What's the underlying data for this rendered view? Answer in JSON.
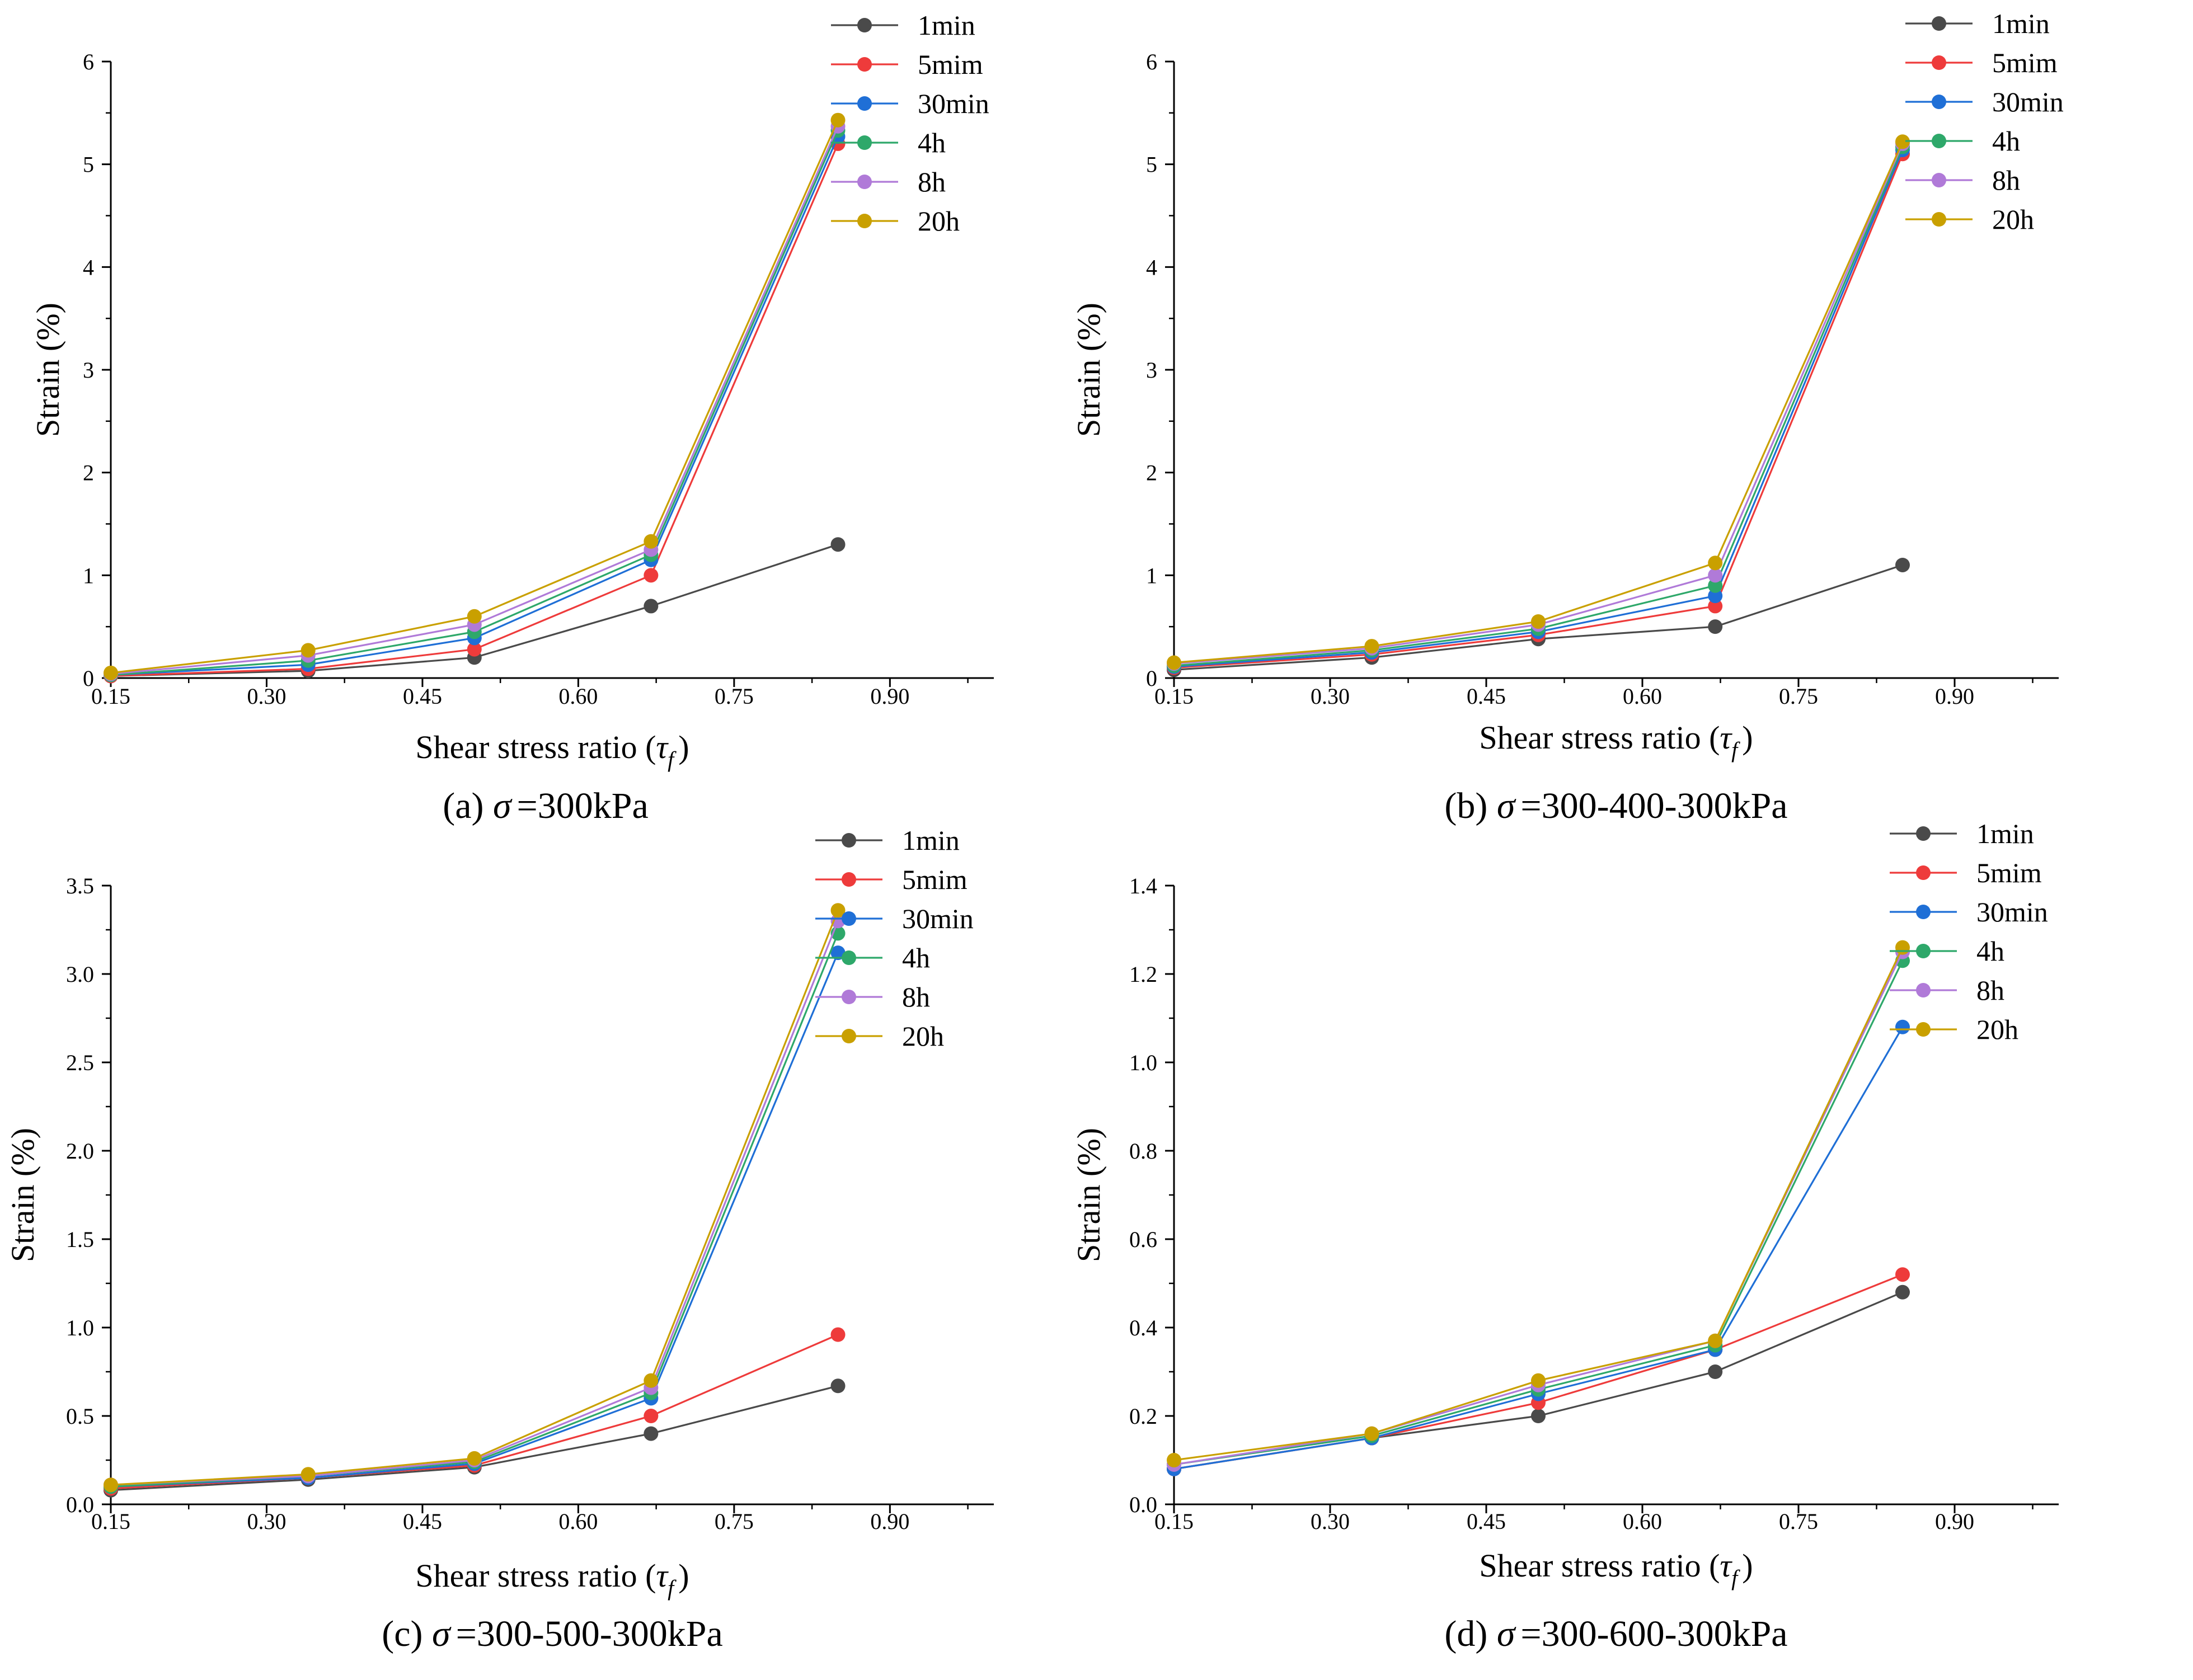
{
  "figure": {
    "series_styles": [
      {
        "name": "1min",
        "color": "#4a4a4a"
      },
      {
        "name": "5mim",
        "color": "#ee3b3b"
      },
      {
        "name": "30min",
        "color": "#1f6fd6"
      },
      {
        "name": "4h",
        "color": "#2ea86a"
      },
      {
        "name": "8h",
        "color": "#b07ad8"
      },
      {
        "name": "20h",
        "color": "#c9a000"
      }
    ]
  },
  "chart_data": [
    {
      "type": "line",
      "caption_prefix": "(a)",
      "caption_symbol": "σ",
      "caption_value": "=300kPa",
      "xlabel": "Shear stress ratio (",
      "xlabel_symbol": "τ",
      "xlabel_sub": "f",
      "xlabel_end": ")",
      "ylabel": "Strain (%)",
      "xlim": [
        0.15,
        1.0
      ],
      "ylim": [
        0,
        6
      ],
      "xticks": [
        0.15,
        0.3,
        0.45,
        0.6,
        0.75,
        0.9
      ],
      "xtick_labels": [
        "0.15",
        "0.30",
        "0.45",
        "0.60",
        "0.75",
        "0.90"
      ],
      "yticks": [
        0,
        1,
        2,
        3,
        4,
        5,
        6
      ],
      "ytick_labels": [
        "0",
        "1",
        "2",
        "3",
        "4",
        "5",
        "6"
      ],
      "x": [
        0.15,
        0.34,
        0.5,
        0.67,
        0.85
      ],
      "legend_position": "top-right",
      "series": [
        {
          "name": "1min",
          "values": [
            0.02,
            0.07,
            0.2,
            0.7,
            1.3
          ]
        },
        {
          "name": "5mim",
          "values": [
            0.02,
            0.09,
            0.28,
            1.0,
            5.2
          ]
        },
        {
          "name": "30min",
          "values": [
            0.03,
            0.13,
            0.39,
            1.15,
            5.27
          ]
        },
        {
          "name": "4h",
          "values": [
            0.03,
            0.17,
            0.45,
            1.2,
            5.33
          ]
        },
        {
          "name": "8h",
          "values": [
            0.04,
            0.22,
            0.52,
            1.25,
            5.37
          ]
        },
        {
          "name": "20h",
          "values": [
            0.05,
            0.27,
            0.6,
            1.33,
            5.43
          ]
        }
      ]
    },
    {
      "type": "line",
      "caption_prefix": "(b)",
      "caption_symbol": "σ",
      "caption_value": "=300-400-300kPa",
      "xlabel": "Shear stress ratio (",
      "xlabel_symbol": "τ",
      "xlabel_sub": "f",
      "xlabel_end": ")",
      "ylabel": "Strain (%)",
      "xlim": [
        0.15,
        1.0
      ],
      "ylim": [
        0,
        6
      ],
      "xticks": [
        0.15,
        0.3,
        0.45,
        0.6,
        0.75,
        0.9
      ],
      "xtick_labels": [
        "0.15",
        "0.30",
        "0.45",
        "0.60",
        "0.75",
        "0.90"
      ],
      "yticks": [
        0,
        1,
        2,
        3,
        4,
        5,
        6
      ],
      "ytick_labels": [
        "0",
        "1",
        "2",
        "3",
        "4",
        "5",
        "6"
      ],
      "x": [
        0.15,
        0.34,
        0.5,
        0.67,
        0.85
      ],
      "legend_position": "top-right",
      "series": [
        {
          "name": "1min",
          "values": [
            0.08,
            0.2,
            0.38,
            0.5,
            1.1
          ]
        },
        {
          "name": "5mim",
          "values": [
            0.1,
            0.23,
            0.42,
            0.7,
            5.1
          ]
        },
        {
          "name": "30min",
          "values": [
            0.11,
            0.25,
            0.45,
            0.8,
            5.14
          ]
        },
        {
          "name": "4h",
          "values": [
            0.12,
            0.27,
            0.48,
            0.9,
            5.17
          ]
        },
        {
          "name": "8h",
          "values": [
            0.14,
            0.29,
            0.52,
            1.0,
            5.2
          ]
        },
        {
          "name": "20h",
          "values": [
            0.15,
            0.31,
            0.55,
            1.12,
            5.22
          ]
        }
      ]
    },
    {
      "type": "line",
      "caption_prefix": "(c)",
      "caption_symbol": "σ",
      "caption_value": "=300-500-300kPa",
      "xlabel": "Shear stress ratio (",
      "xlabel_symbol": "τ",
      "xlabel_sub": "f",
      "xlabel_end": ")",
      "ylabel": "Strain (%)",
      "xlim": [
        0.15,
        1.0
      ],
      "ylim": [
        0,
        3.5
      ],
      "xticks": [
        0.15,
        0.3,
        0.45,
        0.6,
        0.75,
        0.9
      ],
      "xtick_labels": [
        "0.15",
        "0.30",
        "0.45",
        "0.60",
        "0.75",
        "0.90"
      ],
      "yticks": [
        0,
        0.5,
        1.0,
        1.5,
        2.0,
        2.5,
        3.0,
        3.5
      ],
      "ytick_labels": [
        "0.0",
        "0.5",
        "1.0",
        "1.5",
        "2.0",
        "2.5",
        "3.0",
        "3.5"
      ],
      "x": [
        0.15,
        0.34,
        0.5,
        0.67,
        0.85
      ],
      "legend_position": "top-right",
      "series": [
        {
          "name": "1min",
          "values": [
            0.08,
            0.14,
            0.21,
            0.4,
            0.67
          ]
        },
        {
          "name": "5mim",
          "values": [
            0.09,
            0.15,
            0.22,
            0.5,
            0.96
          ]
        },
        {
          "name": "30min",
          "values": [
            0.1,
            0.15,
            0.23,
            0.6,
            3.12
          ]
        },
        {
          "name": "4h",
          "values": [
            0.1,
            0.16,
            0.24,
            0.63,
            3.23
          ]
        },
        {
          "name": "8h",
          "values": [
            0.11,
            0.16,
            0.25,
            0.66,
            3.3
          ]
        },
        {
          "name": "20h",
          "values": [
            0.11,
            0.17,
            0.26,
            0.7,
            3.36
          ]
        }
      ]
    },
    {
      "type": "line",
      "caption_prefix": "(d)",
      "caption_symbol": "σ",
      "caption_value": "=300-600-300kPa",
      "xlabel": "Shear stress ratio (",
      "xlabel_symbol": "τ",
      "xlabel_sub": "f",
      "xlabel_end": ")",
      "ylabel": "Strain (%)",
      "xlim": [
        0.15,
        1.0
      ],
      "ylim": [
        0,
        1.4
      ],
      "xticks": [
        0.15,
        0.3,
        0.45,
        0.6,
        0.75,
        0.9
      ],
      "xtick_labels": [
        "0.15",
        "0.30",
        "0.45",
        "0.60",
        "0.75",
        "0.90"
      ],
      "yticks": [
        0,
        0.2,
        0.4,
        0.6,
        0.8,
        1.0,
        1.2,
        1.4
      ],
      "ytick_labels": [
        "0.0",
        "0.2",
        "0.4",
        "0.6",
        "0.8",
        "1.0",
        "1.2",
        "1.4"
      ],
      "x": [
        0.15,
        0.34,
        0.5,
        0.67,
        0.85
      ],
      "legend_position": "top-right",
      "series": [
        {
          "name": "1min",
          "values": [
            0.08,
            0.15,
            0.2,
            0.3,
            0.48
          ]
        },
        {
          "name": "5mim",
          "values": [
            0.08,
            0.15,
            0.23,
            0.35,
            0.52
          ]
        },
        {
          "name": "30min",
          "values": [
            0.08,
            0.15,
            0.25,
            0.35,
            1.08
          ]
        },
        {
          "name": "4h",
          "values": [
            0.09,
            0.155,
            0.26,
            0.36,
            1.23
          ]
        },
        {
          "name": "8h",
          "values": [
            0.09,
            0.16,
            0.27,
            0.37,
            1.25
          ]
        },
        {
          "name": "20h",
          "values": [
            0.1,
            0.16,
            0.28,
            0.37,
            1.26
          ]
        }
      ]
    }
  ]
}
